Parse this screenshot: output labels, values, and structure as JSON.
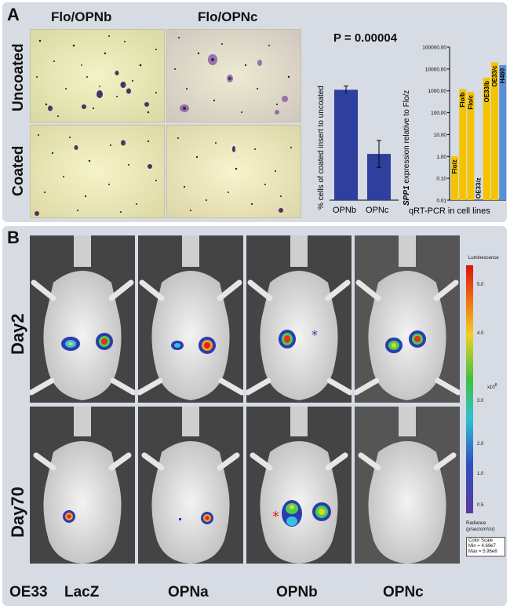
{
  "panel_a": {
    "letter": "A",
    "col_headers": [
      "Flo/OPNb",
      "Flo/OPNc"
    ],
    "row_labels": [
      "Uncoated",
      "Coated"
    ],
    "bar_chart": {
      "type": "bar",
      "title": "P = 0.00004",
      "ylabel": "% cells of coated insert to uncoated",
      "categories": [
        "OPNb",
        "OPNc"
      ],
      "values": [
        74,
        31
      ],
      "errors": [
        2.5,
        9
      ],
      "ylim": [
        0,
        100
      ],
      "color": "#2e3f9e"
    },
    "qpcr_chart": {
      "type": "bar",
      "xlabel": "qRT-PCR in cell lines",
      "ylabel_italic": "SPP1",
      "ylabel_rest": " expression relative to Flo/z",
      "scale": "log",
      "ticks": [
        "0.01",
        "0.10",
        "1.00",
        "10.00",
        "100.00",
        "1000.00",
        "10000.00",
        "100000.00"
      ],
      "categories": [
        "Flo/z",
        "Flo/b",
        "Flo/c",
        "OE33/z",
        "OE33/b",
        "OE33/c",
        "H460"
      ],
      "values": [
        1,
        1200,
        900,
        0.01,
        4000,
        20000,
        15000
      ],
      "colors": [
        "#f5c400",
        "#f5c400",
        "#f5c400",
        "#f5c400",
        "#f5c400",
        "#f5c400",
        "#5b8fd6"
      ]
    }
  },
  "panel_b": {
    "letter": "B",
    "day_labels": [
      "Day2",
      "Day70"
    ],
    "column_labels": [
      "OE33",
      "LacZ",
      "OPNa",
      "OPNb",
      "OPNc"
    ],
    "colorbar": {
      "title": "Luminescence",
      "ticks": [
        "5.0",
        "4.0",
        "3.0",
        "2.0",
        "1.0",
        "0.5"
      ],
      "multiplier": "x10",
      "exponent": "8",
      "radiance_label": "Radiance",
      "radiance_units": "(p/sec/cm²/sr)",
      "scale_title": "Color Scale",
      "scale_min": "Min = 4.69e7",
      "scale_max": "Max = 5.96e8"
    }
  }
}
